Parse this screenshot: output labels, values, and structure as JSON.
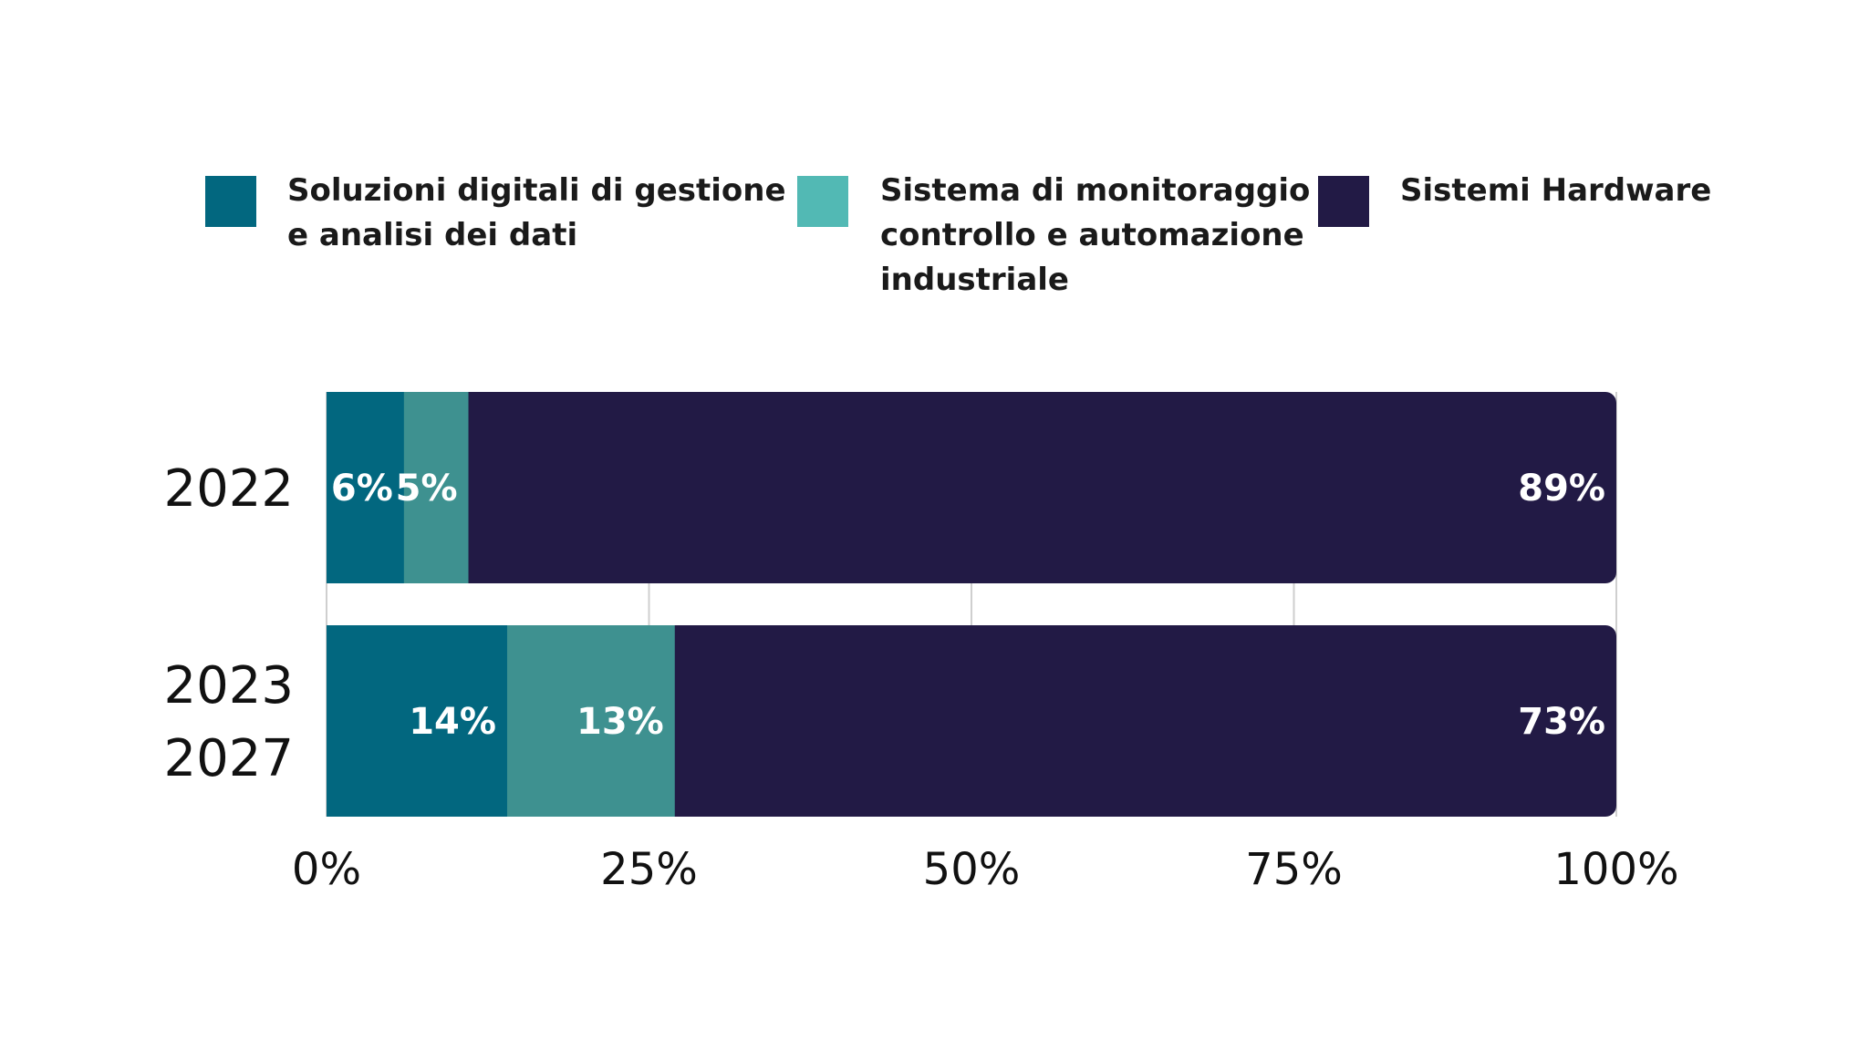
{
  "chart_data": {
    "type": "bar",
    "orientation": "horizontal",
    "stacked": true,
    "normalized": true,
    "categories": [
      [
        "2022"
      ],
      [
        "2023",
        "2027"
      ]
    ],
    "series": [
      {
        "name": "Soluzioni digitali di gestione e analisi dei dati",
        "legend_lines": [
          "Soluzioni digitali di gestione",
          "e analisi dei dati"
        ],
        "values": [
          6,
          14
        ],
        "labels": [
          "6%",
          "14%"
        ],
        "color": "#02677f"
      },
      {
        "name": "Sistema di monitoraggio controllo e automazione industriale",
        "legend_lines": [
          "Sistema di monitoraggio",
          "controllo e automazione",
          "industriale"
        ],
        "values": [
          5,
          13
        ],
        "labels": [
          "5%",
          "13%"
        ],
        "color": "#3e9190"
      },
      {
        "name": "Sistemi Hardware",
        "legend_lines": [
          "Sistemi Hardware"
        ],
        "values": [
          89,
          73
        ],
        "labels": [
          "89%",
          "73%"
        ],
        "color": "#221a45"
      }
    ],
    "legend_colors": [
      "#02677f",
      "#52b9b4",
      "#221a45"
    ],
    "xlim": [
      0,
      100
    ],
    "x_ticks": [
      0,
      25,
      50,
      75,
      100
    ],
    "x_tick_labels": [
      "0%",
      "25%",
      "50%",
      "75%",
      "100%"
    ],
    "legend_position": "top",
    "grid": "vertical"
  }
}
